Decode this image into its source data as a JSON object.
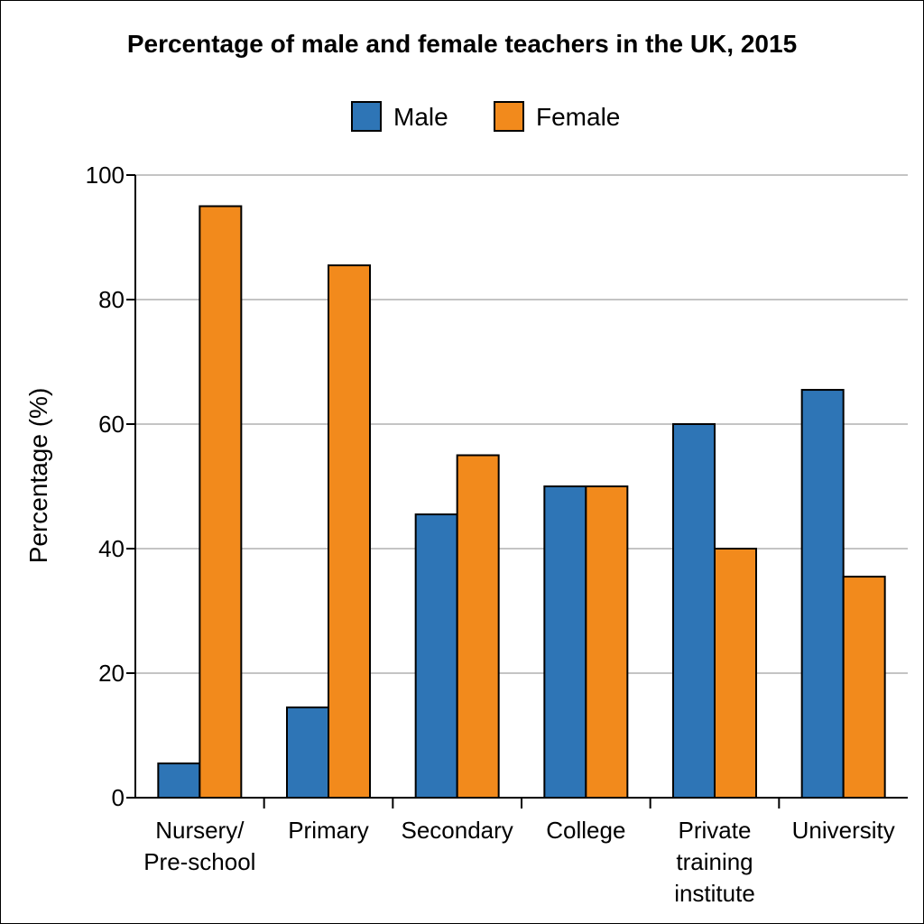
{
  "chart_data": {
    "type": "bar",
    "title": "Percentage of male and female teachers in the UK, 2015",
    "ylabel": "Percentage (%)",
    "xlabel": "",
    "ylim": [
      0,
      100
    ],
    "yticks": [
      0,
      20,
      40,
      60,
      80,
      100
    ],
    "grid": true,
    "legend_position": "top-center",
    "categories": [
      [
        "Nursery/",
        "Pre-school"
      ],
      [
        "Primary"
      ],
      [
        "Secondary"
      ],
      [
        "College"
      ],
      [
        "Private",
        "training",
        "institute"
      ],
      [
        "University"
      ]
    ],
    "series": [
      {
        "name": "Male",
        "color": "#2e75b6",
        "values": [
          5.5,
          14.5,
          45.5,
          50,
          60,
          65.5
        ]
      },
      {
        "name": "Female",
        "color": "#f28a1c",
        "values": [
          95,
          85.5,
          55,
          50,
          40,
          35.5
        ]
      }
    ]
  }
}
